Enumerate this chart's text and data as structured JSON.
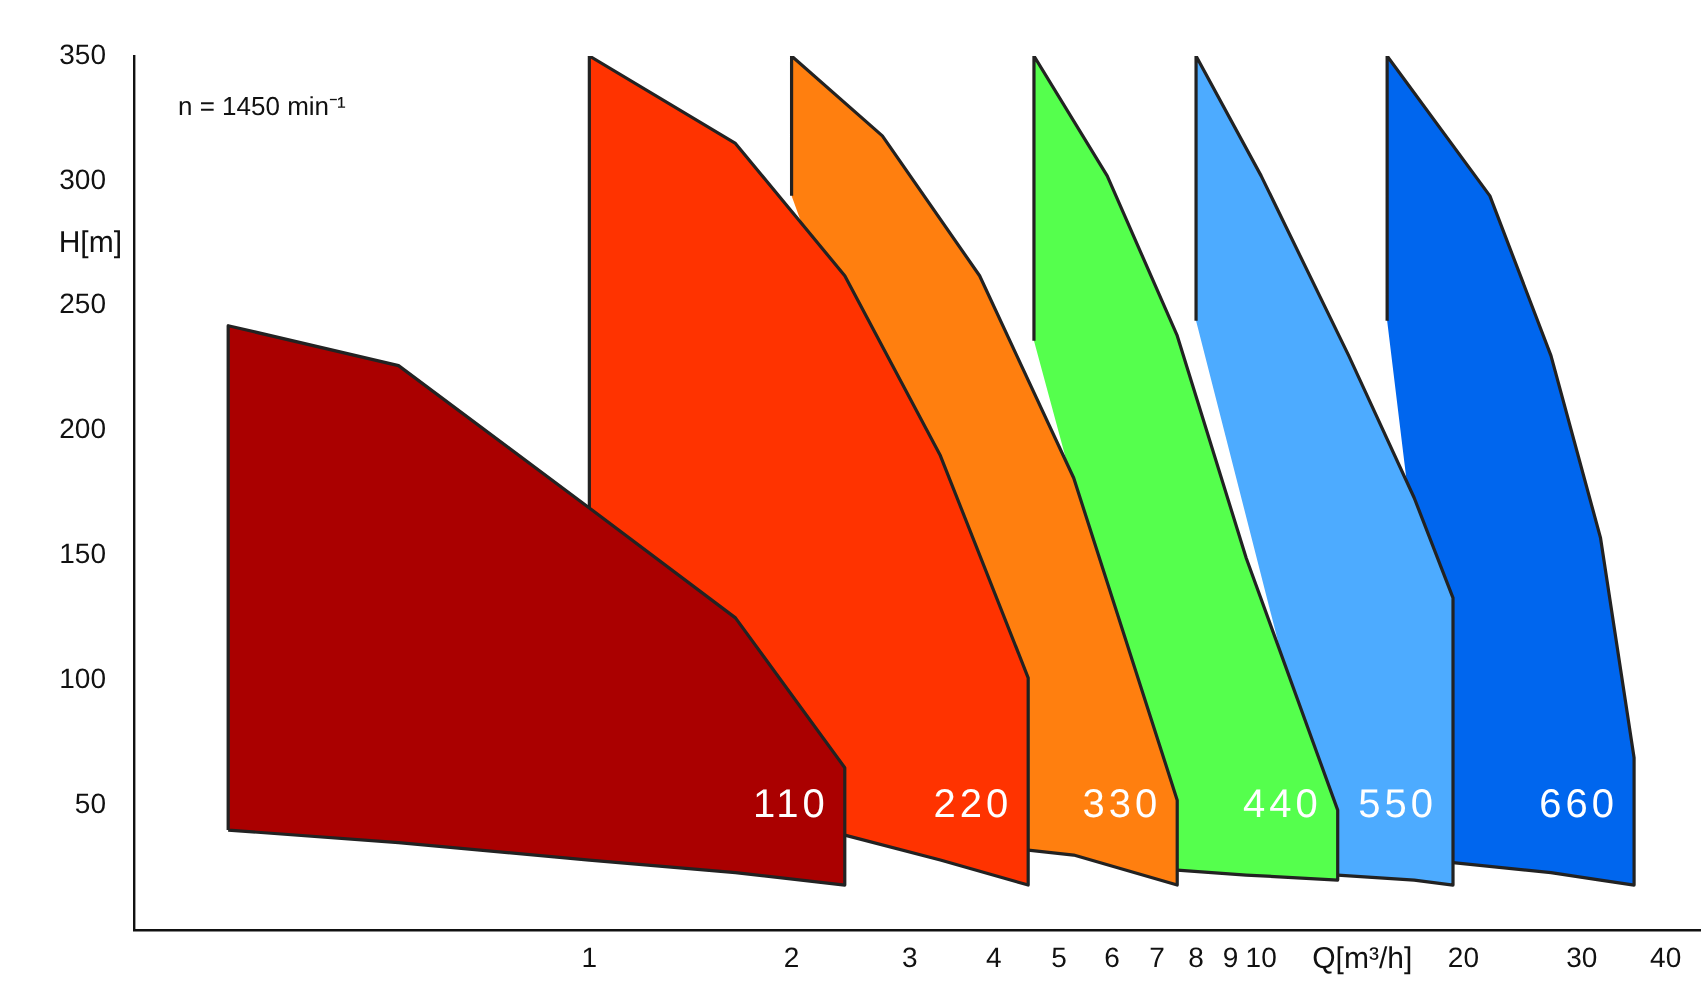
{
  "chart_data": {
    "type": "area",
    "xlabel": "Q[m³/h]",
    "ylabel": "H[m]",
    "annotations": [
      "n = 1450 min⁻¹"
    ],
    "log": "x",
    "grid": false,
    "legend": false,
    "xlim": [
      0.21,
      45
    ],
    "ylim": [
      0,
      350
    ],
    "xticks": [
      1,
      2,
      3,
      4,
      5,
      6,
      7,
      8,
      9,
      10,
      20,
      30,
      40
    ],
    "yticks": [
      50,
      100,
      150,
      200,
      250,
      300,
      350
    ],
    "series": [
      {
        "name": "110",
        "color": "#aa0000",
        "x": [
          0.29,
          0.29,
          0.52,
          1,
          1.65,
          2.4,
          2.4,
          1.65,
          1,
          0.52,
          0.29
        ],
        "values": [
          40,
          242,
          226,
          169,
          125,
          65,
          18,
          23,
          28,
          35,
          40
        ]
      },
      {
        "name": "220",
        "color": "#ff3300",
        "x": [
          1,
          1,
          1.65,
          2.4,
          3.33,
          4.5,
          4.5,
          3.33,
          2.4
        ],
        "values": [
          169,
          350,
          315,
          262,
          190,
          101,
          18,
          28,
          38
        ]
      },
      {
        "name": "330",
        "color": "#ff7f0f",
        "x": [
          2,
          2,
          2.73,
          3.81,
          5.26,
          7.5,
          7.5,
          5.26,
          4.5
        ],
        "values": [
          294,
          350,
          318,
          262,
          181,
          52,
          18,
          30,
          32
        ]
      },
      {
        "name": "440",
        "color": "#55ff4d",
        "x": [
          4.59,
          4.59,
          5.9,
          7.5,
          9.5,
          13,
          13,
          9.5,
          7.5
        ],
        "values": [
          236,
          350,
          302,
          238,
          149,
          48,
          20,
          22,
          24
        ]
      },
      {
        "name": "550",
        "color": "#4dabff",
        "x": [
          8,
          8,
          10,
          13.5,
          16.9,
          19.3,
          19.3,
          16.9,
          13
        ],
        "values": [
          244,
          350,
          302,
          230,
          173,
          133,
          18,
          20,
          22
        ]
      },
      {
        "name": "660",
        "color": "#0066ee",
        "x": [
          15.4,
          15.4,
          21.9,
          27,
          32,
          35.9,
          35.9,
          32,
          27,
          19.3
        ],
        "values": [
          244,
          350,
          294,
          230,
          157,
          69,
          18,
          20,
          23,
          27
        ]
      }
    ]
  }
}
